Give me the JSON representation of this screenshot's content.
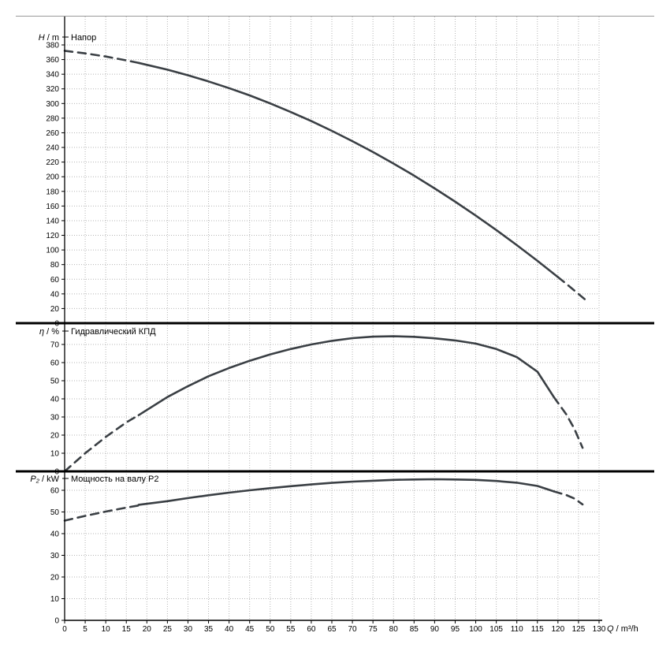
{
  "style": {
    "curve_color": "#3a3f44",
    "grid_color": "#b5b5b5",
    "axis_color": "#000000",
    "separator_color": "#000000",
    "background": "#ffffff"
  },
  "axes": {
    "x": {
      "label": "Q / m³/h",
      "min": 0,
      "max": 130,
      "tick_step": 5
    }
  },
  "chart_data": [
    {
      "id": "head",
      "type": "line",
      "title": "Напор",
      "ylabel": "H / m",
      "ylim": [
        0,
        380
      ],
      "ytick_step": 20,
      "ytick_max": 380,
      "series": [
        {
          "name": "head-extrapolated-left",
          "style": "dashed",
          "points": [
            [
              0,
              372
            ],
            [
              5,
              368.5
            ],
            [
              10,
              364.2
            ],
            [
              15,
              358.9
            ],
            [
              18,
              355.5
            ]
          ]
        },
        {
          "name": "head-curve",
          "style": "solid",
          "points": [
            [
              18,
              355.5
            ],
            [
              25,
              346.2
            ],
            [
              30,
              338.6
            ],
            [
              35,
              330.2
            ],
            [
              40,
              321
            ],
            [
              45,
              311.1
            ],
            [
              50,
              300.1
            ],
            [
              55,
              288.4
            ],
            [
              60,
              276
            ],
            [
              65,
              262.7
            ],
            [
              70,
              248.6
            ],
            [
              75,
              233.7
            ],
            [
              80,
              218
            ],
            [
              85,
              201.5
            ],
            [
              90,
              184.1
            ],
            [
              95,
              165.9
            ],
            [
              100,
              147
            ],
            [
              105,
              127.2
            ],
            [
              110,
              106.6
            ],
            [
              115,
              85.2
            ],
            [
              120,
              63
            ]
          ]
        },
        {
          "name": "head-extrapolated-right",
          "style": "dashed",
          "points": [
            [
              120,
              63
            ],
            [
              123,
              49.3
            ],
            [
              125,
              39.9
            ],
            [
              127,
              30.4
            ]
          ]
        }
      ]
    },
    {
      "id": "efficiency",
      "type": "line",
      "title": "Гидравлический КПД",
      "ylabel": "η / %",
      "ylim": [
        0,
        80
      ],
      "ytick_step": 10,
      "ytick_max": 70,
      "series": [
        {
          "name": "efficiency-extrapolated-left",
          "style": "dashed",
          "points": [
            [
              0,
              0
            ],
            [
              5,
              10
            ],
            [
              10,
              19
            ],
            [
              15,
              27
            ],
            [
              18,
              31
            ]
          ]
        },
        {
          "name": "efficiency-curve",
          "style": "solid",
          "points": [
            [
              18,
              31
            ],
            [
              25,
              41
            ],
            [
              30,
              47
            ],
            [
              35,
              52.5
            ],
            [
              40,
              57
            ],
            [
              45,
              61
            ],
            [
              50,
              64.5
            ],
            [
              55,
              67.5
            ],
            [
              60,
              70
            ],
            [
              65,
              72
            ],
            [
              70,
              73.5
            ],
            [
              75,
              74.3
            ],
            [
              80,
              74.5
            ],
            [
              85,
              74.2
            ],
            [
              90,
              73.4
            ],
            [
              95,
              72.2
            ],
            [
              100,
              70.5
            ],
            [
              105,
              67.5
            ],
            [
              110,
              63
            ],
            [
              115,
              55
            ],
            [
              119,
              41
            ]
          ]
        },
        {
          "name": "efficiency-extrapolated-right",
          "style": "dashed",
          "points": [
            [
              119,
              41
            ],
            [
              122,
              31.5
            ],
            [
              124,
              23.5
            ],
            [
              126,
              13
            ]
          ]
        }
      ]
    },
    {
      "id": "power",
      "type": "line",
      "title": "Мощность на валу P2",
      "ylabel": "P₂ / kW",
      "ylim": [
        0,
        66
      ],
      "ytick_step": 10,
      "ytick_max": 60,
      "series": [
        {
          "name": "power-extrapolated-left",
          "style": "dashed",
          "points": [
            [
              0,
              46
            ],
            [
              5,
              48.2
            ],
            [
              10,
              50.2
            ],
            [
              15,
              52
            ],
            [
              18,
              53
            ]
          ]
        },
        {
          "name": "power-curve",
          "style": "solid",
          "points": [
            [
              18,
              53.3
            ],
            [
              25,
              55
            ],
            [
              30,
              56.4
            ],
            [
              35,
              57.7
            ],
            [
              40,
              58.9
            ],
            [
              45,
              60
            ],
            [
              50,
              61
            ],
            [
              55,
              61.9
            ],
            [
              60,
              62.7
            ],
            [
              65,
              63.4
            ],
            [
              70,
              64
            ],
            [
              75,
              64.4
            ],
            [
              80,
              64.8
            ],
            [
              85,
              65
            ],
            [
              90,
              65.1
            ],
            [
              95,
              65
            ],
            [
              100,
              64.8
            ],
            [
              105,
              64.3
            ],
            [
              110,
              63.5
            ],
            [
              115,
              62
            ],
            [
              119,
              59.5
            ]
          ]
        },
        {
          "name": "power-extrapolated-right",
          "style": "dashed",
          "points": [
            [
              119,
              59.5
            ],
            [
              122,
              57.8
            ],
            [
              124,
              56.2
            ],
            [
              126,
              53.5
            ]
          ]
        }
      ]
    }
  ]
}
